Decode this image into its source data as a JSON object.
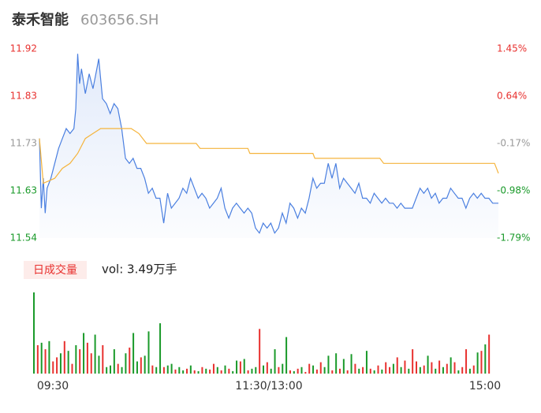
{
  "header": {
    "name": "泰禾智能",
    "code": "603656.SH"
  },
  "chart_data": [
    {
      "type": "line",
      "ylim": [
        11.54,
        11.92
      ],
      "yticks": [
        11.92,
        {
          "value": 11.825,
          "label": "11.83"
        },
        11.73,
        {
          "value": 11.635,
          "label": "11.63"
        },
        11.54
      ],
      "y2lim": [
        -1.79,
        1.45
      ],
      "y2ticks": [
        {
          "value": 1.45,
          "label": "1.45%"
        },
        {
          "value": 0.64,
          "label": "0.64%"
        },
        {
          "value": -0.17,
          "label": "-0.17%"
        },
        {
          "value": -0.98,
          "label": "-0.98%"
        },
        {
          "value": -1.79,
          "label": "-1.79%"
        }
      ],
      "tick_colors": [
        "#e8312f",
        "#e8312f",
        "#999999",
        "#1a9a2a",
        "#1a9a2a"
      ],
      "xlim": [
        0,
        240
      ],
      "xticks": [
        {
          "value": 0,
          "label": "09:30"
        },
        {
          "value": 120,
          "label": "11:30/13:00"
        },
        {
          "value": 240,
          "label": "15:00"
        }
      ],
      "series": [
        {
          "color": "#4a7fe0",
          "area": true,
          "x": [
            0,
            1,
            2,
            3,
            4,
            5,
            6,
            8,
            10,
            12,
            14,
            16,
            18,
            19,
            20,
            21,
            22,
            24,
            26,
            28,
            30,
            31,
            32,
            33,
            35,
            37,
            39,
            41,
            43,
            45,
            47,
            49,
            51,
            53,
            55,
            57,
            59,
            61,
            63,
            65,
            67,
            69,
            71,
            73,
            75,
            77,
            79,
            81,
            83,
            85,
            87,
            89,
            91,
            93,
            95,
            97,
            99,
            101,
            103,
            105,
            107,
            109,
            111,
            113,
            115,
            117,
            119,
            121,
            123,
            125,
            127,
            129,
            131,
            133,
            135,
            137,
            139,
            141,
            143,
            145,
            147,
            149,
            151,
            153,
            155,
            157,
            159,
            161,
            163,
            165,
            167,
            169,
            171,
            173,
            175,
            177,
            179,
            181,
            183,
            185,
            187,
            189,
            191,
            193,
            195,
            197,
            199,
            201,
            203,
            205,
            207,
            209,
            211,
            213,
            215,
            217,
            219,
            221,
            223,
            225,
            227,
            229,
            231,
            233,
            235,
            237,
            240
          ],
          "values": [
            11.74,
            11.6,
            11.66,
            11.59,
            11.64,
            11.65,
            11.66,
            11.69,
            11.72,
            11.74,
            11.76,
            11.75,
            11.76,
            11.8,
            11.91,
            11.85,
            11.88,
            11.83,
            11.87,
            11.84,
            11.88,
            11.9,
            11.86,
            11.82,
            11.81,
            11.79,
            11.81,
            11.8,
            11.76,
            11.7,
            11.69,
            11.7,
            11.68,
            11.68,
            11.66,
            11.63,
            11.64,
            11.62,
            11.62,
            11.57,
            11.63,
            11.6,
            11.61,
            11.62,
            11.64,
            11.63,
            11.66,
            11.64,
            11.62,
            11.63,
            11.62,
            11.6,
            11.61,
            11.62,
            11.64,
            11.6,
            11.58,
            11.6,
            11.61,
            11.6,
            11.59,
            11.6,
            11.59,
            11.56,
            11.55,
            11.57,
            11.56,
            11.57,
            11.55,
            11.56,
            11.59,
            11.57,
            11.61,
            11.6,
            11.58,
            11.6,
            11.59,
            11.62,
            11.66,
            11.64,
            11.65,
            11.65,
            11.69,
            11.66,
            11.69,
            11.64,
            11.66,
            11.65,
            11.64,
            11.63,
            11.65,
            11.62,
            11.62,
            11.61,
            11.63,
            11.62,
            11.61,
            11.62,
            11.61,
            11.61,
            11.6,
            11.61,
            11.6,
            11.6,
            11.6,
            11.62,
            11.64,
            11.63,
            11.64,
            11.62,
            11.63,
            11.61,
            11.62,
            11.62,
            11.64,
            11.63,
            11.62,
            11.62,
            11.6,
            11.62,
            11.63,
            11.62,
            11.63,
            11.62,
            11.62,
            11.61,
            11.61
          ]
        },
        {
          "color": "#f5b43c",
          "x": [
            0,
            2,
            8,
            12,
            16,
            20,
            24,
            28,
            32,
            40,
            48,
            52,
            56,
            82,
            84,
            109,
            110,
            143,
            144,
            178,
            180,
            238,
            240
          ],
          "values": [
            11.74,
            11.65,
            11.66,
            11.68,
            11.69,
            11.71,
            11.74,
            11.75,
            11.76,
            11.76,
            11.76,
            11.75,
            11.73,
            11.73,
            11.72,
            11.72,
            11.71,
            11.71,
            11.7,
            11.7,
            11.69,
            11.69,
            11.67
          ]
        }
      ]
    },
    {
      "type": "bar",
      "badge": "日成交量",
      "volume_label": "vol: 3.49万手",
      "ylim": [
        0,
        100
      ],
      "xlim": [
        0,
        240
      ],
      "x": [
        0,
        2,
        4,
        6,
        8,
        10,
        12,
        14,
        16,
        18,
        20,
        22,
        24,
        26,
        28,
        30,
        32,
        34,
        36,
        38,
        40,
        42,
        44,
        46,
        48,
        50,
        52,
        54,
        56,
        58,
        60,
        62,
        64,
        66,
        68,
        70,
        72,
        74,
        76,
        78,
        80,
        82,
        84,
        86,
        88,
        90,
        92,
        94,
        96,
        98,
        100,
        102,
        104,
        106,
        108,
        110,
        112,
        114,
        116,
        118,
        120,
        122,
        124,
        126,
        128,
        130,
        132,
        134,
        136,
        138,
        140,
        142,
        144,
        146,
        148,
        150,
        152,
        154,
        156,
        158,
        160,
        162,
        164,
        166,
        168,
        170,
        172,
        174,
        176,
        178,
        180,
        182,
        184,
        186,
        188,
        190,
        192,
        194,
        196,
        198,
        200,
        202,
        204,
        206,
        208,
        210,
        212,
        214,
        216,
        218,
        220,
        222,
        224,
        226,
        228,
        230,
        232,
        234,
        236,
        238
      ],
      "values": [
        100,
        35,
        38,
        30,
        40,
        15,
        20,
        25,
        40,
        28,
        12,
        35,
        30,
        50,
        38,
        25,
        48,
        22,
        35,
        8,
        10,
        30,
        12,
        8,
        25,
        32,
        50,
        15,
        20,
        22,
        52,
        10,
        8,
        62,
        8,
        10,
        12,
        5,
        8,
        4,
        6,
        10,
        4,
        3,
        8,
        6,
        5,
        12,
        8,
        4,
        10,
        6,
        3,
        16,
        15,
        18,
        4,
        6,
        8,
        55,
        10,
        14,
        6,
        30,
        8,
        12,
        45,
        4,
        3,
        6,
        8,
        2,
        12,
        10,
        5,
        14,
        8,
        22,
        4,
        25,
        6,
        18,
        4,
        24,
        12,
        6,
        8,
        28,
        6,
        4,
        10,
        5,
        14,
        8,
        12,
        20,
        8,
        16,
        6,
        30,
        15,
        8,
        10,
        22,
        14,
        6,
        16,
        8,
        12,
        20,
        14,
        4,
        8,
        30,
        6,
        10,
        26,
        28,
        36,
        48
      ],
      "colors": [
        "#1a9a2a",
        "#e8312f",
        "#1a9a2a",
        "#e8312f",
        "#1a9a2a",
        "#e8312f",
        "#e8312f",
        "#1a9a2a",
        "#e8312f",
        "#1a9a2a",
        "#e8312f",
        "#1a9a2a",
        "#e8312f",
        "#1a9a2a",
        "#e8312f",
        "#e8312f",
        "#1a9a2a",
        "#1a9a2a",
        "#e8312f",
        "#1a9a2a",
        "#1a9a2a",
        "#1a9a2a",
        "#e8312f",
        "#1a9a2a",
        "#1a9a2a",
        "#e8312f",
        "#1a9a2a",
        "#1a9a2a",
        "#e8312f",
        "#1a9a2a",
        "#1a9a2a",
        "#e8312f",
        "#1a9a2a",
        "#1a9a2a",
        "#e8312f",
        "#1a9a2a",
        "#1a9a2a",
        "#e8312f",
        "#1a9a2a",
        "#1a9a2a",
        "#e8312f",
        "#1a9a2a",
        "#e8312f",
        "#1a9a2a",
        "#e8312f",
        "#1a9a2a",
        "#e8312f",
        "#e8312f",
        "#1a9a2a",
        "#e8312f",
        "#1a9a2a",
        "#e8312f",
        "#1a9a2a",
        "#1a9a2a",
        "#e8312f",
        "#1a9a2a",
        "#e8312f",
        "#1a9a2a",
        "#1a9a2a",
        "#e8312f",
        "#1a9a2a",
        "#e8312f",
        "#1a9a2a",
        "#1a9a2a",
        "#e8312f",
        "#1a9a2a",
        "#1a9a2a",
        "#e8312f",
        "#1a9a2a",
        "#e8312f",
        "#1a9a2a",
        "#e8312f",
        "#e8312f",
        "#1a9a2a",
        "#e8312f",
        "#e8312f",
        "#1a9a2a",
        "#1a9a2a",
        "#e8312f",
        "#1a9a2a",
        "#e8312f",
        "#1a9a2a",
        "#e8312f",
        "#1a9a2a",
        "#e8312f",
        "#1a9a2a",
        "#e8312f",
        "#1a9a2a",
        "#e8312f",
        "#1a9a2a",
        "#e8312f",
        "#1a9a2a",
        "#e8312f",
        "#e8312f",
        "#1a9a2a",
        "#e8312f",
        "#1a9a2a",
        "#e8312f",
        "#1a9a2a",
        "#e8312f",
        "#e8312f",
        "#1a9a2a",
        "#e8312f",
        "#1a9a2a",
        "#e8312f",
        "#1a9a2a",
        "#e8312f",
        "#1a9a2a",
        "#e8312f",
        "#1a9a2a",
        "#e8312f",
        "#1a9a2a",
        "#e8312f",
        "#e8312f",
        "#1a9a2a",
        "#e8312f",
        "#1a9a2a",
        "#e8312f",
        "#1a9a2a",
        "#e8312f"
      ]
    }
  ]
}
